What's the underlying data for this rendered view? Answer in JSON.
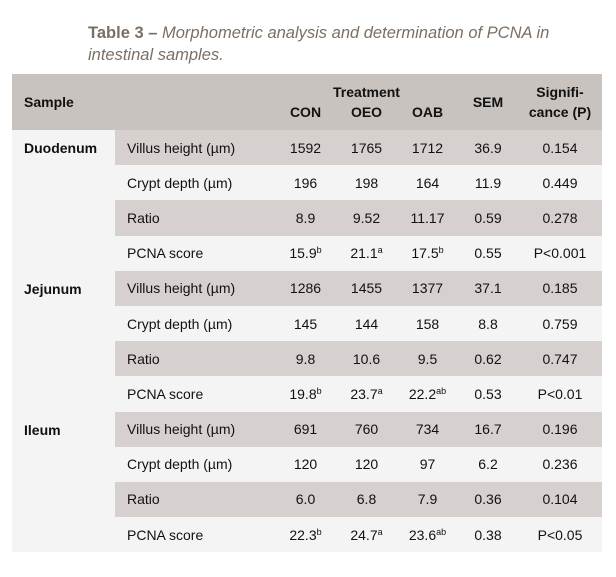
{
  "caption": {
    "label": "Table 3 –",
    "text": "Morphometric analysis and determination of PCNA in intestinal samples."
  },
  "header": {
    "sample": "Sample",
    "treatment": "Treatment",
    "groups": [
      "CON",
      "OEO",
      "OAB"
    ],
    "sem": "SEM",
    "significance_line1": "Signifi-",
    "significance_line2": "cance (P)"
  },
  "sections": [
    {
      "name": "Duodenum",
      "rows": [
        {
          "param": "Villus height (µm)",
          "con": "1592",
          "con_sup": "",
          "oeo": "1765",
          "oeo_sup": "",
          "oab": "1712",
          "oab_sup": "",
          "sem": "36.9",
          "p": "0.154"
        },
        {
          "param": "Crypt depth (µm)",
          "con": "196",
          "con_sup": "",
          "oeo": "198",
          "oeo_sup": "",
          "oab": "164",
          "oab_sup": "",
          "sem": "11.9",
          "p": "0.449"
        },
        {
          "param": "Ratio",
          "con": "8.9",
          "con_sup": "",
          "oeo": "9.52",
          "oeo_sup": "",
          "oab": "11.17",
          "oab_sup": "",
          "sem": "0.59",
          "p": "0.278"
        },
        {
          "param": "PCNA score",
          "con": "15.9",
          "con_sup": "b",
          "oeo": "21.1",
          "oeo_sup": "a",
          "oab": "17.5",
          "oab_sup": "b",
          "sem": "0.55",
          "p": "P<0.001"
        }
      ]
    },
    {
      "name": "Jejunum",
      "rows": [
        {
          "param": "Villus height (µm)",
          "con": "1286",
          "con_sup": "",
          "oeo": "1455",
          "oeo_sup": "",
          "oab": "1377",
          "oab_sup": "",
          "sem": "37.1",
          "p": "0.185"
        },
        {
          "param": "Crypt depth (µm)",
          "con": "145",
          "con_sup": "",
          "oeo": "144",
          "oeo_sup": "",
          "oab": "158",
          "oab_sup": "",
          "sem": "8.8",
          "p": "0.759"
        },
        {
          "param": "Ratio",
          "con": "9.8",
          "con_sup": "",
          "oeo": "10.6",
          "oeo_sup": "",
          "oab": "9.5",
          "oab_sup": "",
          "sem": "0.62",
          "p": "0.747"
        },
        {
          "param": "PCNA score",
          "con": "19.8",
          "con_sup": "b",
          "oeo": "23.7",
          "oeo_sup": "a",
          "oab": "22.2",
          "oab_sup": "ab",
          "sem": "0.53",
          "p": "P<0.01"
        }
      ]
    },
    {
      "name": "Ileum",
      "rows": [
        {
          "param": "Villus height (µm)",
          "con": "691",
          "con_sup": "",
          "oeo": "760",
          "oeo_sup": "",
          "oab": "734",
          "oab_sup": "",
          "sem": "16.7",
          "p": "0.196"
        },
        {
          "param": "Crypt depth (µm)",
          "con": "120",
          "con_sup": "",
          "oeo": "120",
          "oeo_sup": "",
          "oab": "97",
          "oab_sup": "",
          "sem": "6.2",
          "p": "0.236"
        },
        {
          "param": "Ratio",
          "con": "6.0",
          "con_sup": "",
          "oeo": "6.8",
          "oeo_sup": "",
          "oab": "7.9",
          "oab_sup": "",
          "sem": "0.36",
          "p": "0.104"
        },
        {
          "param": "PCNA score",
          "con": "22.3",
          "con_sup": "b",
          "oeo": "24.7",
          "oeo_sup": "a",
          "oab": "23.6",
          "oab_sup": "ab",
          "sem": "0.38",
          "p": "P<0.05"
        }
      ]
    }
  ]
}
